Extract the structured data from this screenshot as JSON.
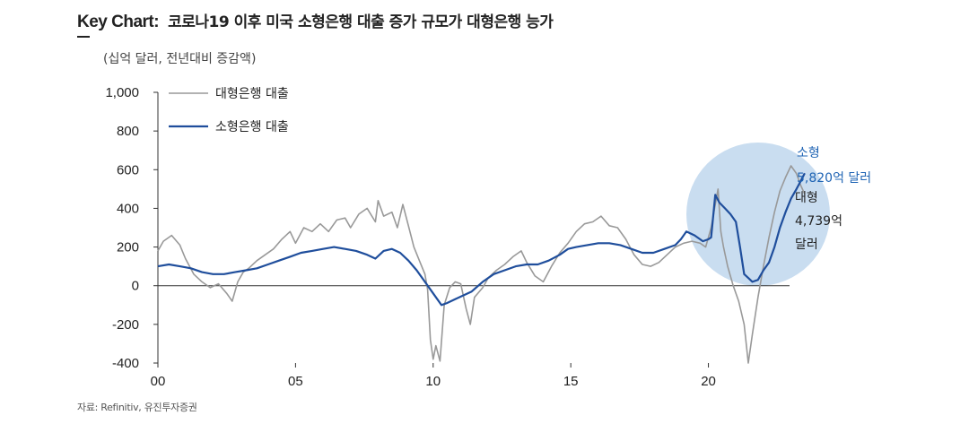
{
  "header": {
    "key_label": "Key Chart:",
    "title": "코로나19 이후 미국 소형은행 대출 증가 규모가 대형은행 능가",
    "unit": "(십억 달러, 전년대비 증감액)"
  },
  "source": "자료: Refinitiv, 유진투자증권",
  "colors": {
    "small_bank": "#1f4e9c",
    "large_bank": "#999999",
    "highlight_circle": "#c9ddf0",
    "annotation_blue": "#1f64b4"
  },
  "annotations": {
    "small": {
      "line1": "소형",
      "line2": "5,820억 달러"
    },
    "large": {
      "line1": "대형",
      "line2": "4,739억",
      "line3": "달러"
    }
  },
  "chart_data": {
    "type": "line",
    "xlabel": "",
    "ylabel": "",
    "xlim": [
      2000,
      2023.6
    ],
    "ylim": [
      -400,
      1000
    ],
    "y_ticks": [
      1000,
      800,
      600,
      400,
      200,
      0,
      -200,
      -400
    ],
    "y_tick_labels": [
      "1,000",
      "800",
      "600",
      "400",
      "200",
      "0",
      "-200",
      "-400"
    ],
    "x_ticks": [
      2000,
      2005,
      2010,
      2015,
      2020
    ],
    "x_tick_labels": [
      "00",
      "05",
      "10",
      "15",
      "20"
    ],
    "legend_position": "top-left",
    "series": [
      {
        "name": "대형은행 대출",
        "color": "#999999",
        "points": [
          [
            2000.0,
            180
          ],
          [
            2000.2,
            230
          ],
          [
            2000.5,
            260
          ],
          [
            2000.8,
            210
          ],
          [
            2001.0,
            140
          ],
          [
            2001.3,
            60
          ],
          [
            2001.6,
            20
          ],
          [
            2001.9,
            -10
          ],
          [
            2002.2,
            10
          ],
          [
            2002.5,
            -40
          ],
          [
            2002.7,
            -80
          ],
          [
            2002.9,
            20
          ],
          [
            2003.1,
            70
          ],
          [
            2003.3,
            90
          ],
          [
            2003.6,
            130
          ],
          [
            2003.9,
            160
          ],
          [
            2004.2,
            190
          ],
          [
            2004.5,
            240
          ],
          [
            2004.8,
            280
          ],
          [
            2005.0,
            220
          ],
          [
            2005.3,
            300
          ],
          [
            2005.6,
            280
          ],
          [
            2005.9,
            320
          ],
          [
            2006.2,
            280
          ],
          [
            2006.5,
            340
          ],
          [
            2006.8,
            350
          ],
          [
            2007.0,
            300
          ],
          [
            2007.3,
            370
          ],
          [
            2007.6,
            400
          ],
          [
            2007.9,
            330
          ],
          [
            2008.0,
            440
          ],
          [
            2008.2,
            360
          ],
          [
            2008.5,
            380
          ],
          [
            2008.7,
            300
          ],
          [
            2008.9,
            420
          ],
          [
            2009.1,
            310
          ],
          [
            2009.3,
            200
          ],
          [
            2009.5,
            130
          ],
          [
            2009.7,
            60
          ],
          [
            2009.8,
            -20
          ],
          [
            2009.9,
            -280
          ],
          [
            2010.0,
            -380
          ],
          [
            2010.1,
            -310
          ],
          [
            2010.25,
            -390
          ],
          [
            2010.4,
            -100
          ],
          [
            2010.6,
            -10
          ],
          [
            2010.8,
            20
          ],
          [
            2011.0,
            10
          ],
          [
            2011.2,
            -120
          ],
          [
            2011.35,
            -200
          ],
          [
            2011.5,
            -60
          ],
          [
            2011.8,
            -10
          ],
          [
            2012.0,
            40
          ],
          [
            2012.3,
            80
          ],
          [
            2012.6,
            110
          ],
          [
            2012.9,
            150
          ],
          [
            2013.2,
            180
          ],
          [
            2013.4,
            120
          ],
          [
            2013.7,
            50
          ],
          [
            2014.0,
            20
          ],
          [
            2014.3,
            100
          ],
          [
            2014.6,
            170
          ],
          [
            2014.9,
            220
          ],
          [
            2015.2,
            280
          ],
          [
            2015.5,
            320
          ],
          [
            2015.8,
            330
          ],
          [
            2016.1,
            360
          ],
          [
            2016.4,
            310
          ],
          [
            2016.7,
            300
          ],
          [
            2017.0,
            240
          ],
          [
            2017.3,
            160
          ],
          [
            2017.6,
            110
          ],
          [
            2017.9,
            100
          ],
          [
            2018.2,
            120
          ],
          [
            2018.5,
            160
          ],
          [
            2018.8,
            200
          ],
          [
            2019.1,
            220
          ],
          [
            2019.4,
            230
          ],
          [
            2019.7,
            220
          ],
          [
            2019.9,
            200
          ],
          [
            2020.1,
            300
          ],
          [
            2020.2,
            380
          ],
          [
            2020.35,
            500
          ],
          [
            2020.45,
            280
          ],
          [
            2020.55,
            200
          ],
          [
            2020.7,
            100
          ],
          [
            2020.9,
            0
          ],
          [
            2021.1,
            -80
          ],
          [
            2021.3,
            -200
          ],
          [
            2021.45,
            -400
          ],
          [
            2021.6,
            -250
          ],
          [
            2021.8,
            -60
          ],
          [
            2022.0,
            100
          ],
          [
            2022.2,
            250
          ],
          [
            2022.4,
            380
          ],
          [
            2022.6,
            490
          ],
          [
            2022.8,
            560
          ],
          [
            2023.0,
            620
          ],
          [
            2023.2,
            580
          ],
          [
            2023.35,
            520
          ],
          [
            2023.5,
            474
          ]
        ]
      },
      {
        "name": "소형은행 대출",
        "color": "#1f4e9c",
        "points": [
          [
            2000.0,
            100
          ],
          [
            2000.4,
            110
          ],
          [
            2000.8,
            100
          ],
          [
            2001.2,
            90
          ],
          [
            2001.6,
            70
          ],
          [
            2002.0,
            60
          ],
          [
            2002.4,
            60
          ],
          [
            2002.8,
            70
          ],
          [
            2003.2,
            80
          ],
          [
            2003.6,
            90
          ],
          [
            2004.0,
            110
          ],
          [
            2004.4,
            130
          ],
          [
            2004.8,
            150
          ],
          [
            2005.2,
            170
          ],
          [
            2005.6,
            180
          ],
          [
            2006.0,
            190
          ],
          [
            2006.4,
            200
          ],
          [
            2006.8,
            190
          ],
          [
            2007.2,
            180
          ],
          [
            2007.6,
            160
          ],
          [
            2007.9,
            140
          ],
          [
            2008.2,
            180
          ],
          [
            2008.5,
            190
          ],
          [
            2008.8,
            170
          ],
          [
            2009.1,
            130
          ],
          [
            2009.4,
            80
          ],
          [
            2009.7,
            20
          ],
          [
            2010.0,
            -40
          ],
          [
            2010.3,
            -100
          ],
          [
            2010.5,
            -90
          ],
          [
            2010.8,
            -70
          ],
          [
            2011.1,
            -50
          ],
          [
            2011.4,
            -30
          ],
          [
            2011.8,
            20
          ],
          [
            2012.2,
            60
          ],
          [
            2012.6,
            80
          ],
          [
            2013.0,
            100
          ],
          [
            2013.4,
            110
          ],
          [
            2013.8,
            110
          ],
          [
            2014.2,
            130
          ],
          [
            2014.6,
            160
          ],
          [
            2014.9,
            190
          ],
          [
            2015.2,
            200
          ],
          [
            2015.6,
            210
          ],
          [
            2016.0,
            220
          ],
          [
            2016.4,
            220
          ],
          [
            2016.8,
            210
          ],
          [
            2017.2,
            190
          ],
          [
            2017.6,
            170
          ],
          [
            2018.0,
            170
          ],
          [
            2018.4,
            190
          ],
          [
            2018.8,
            210
          ],
          [
            2019.0,
            240
          ],
          [
            2019.2,
            280
          ],
          [
            2019.5,
            260
          ],
          [
            2019.8,
            230
          ],
          [
            2020.0,
            240
          ],
          [
            2020.1,
            250
          ],
          [
            2020.25,
            470
          ],
          [
            2020.4,
            430
          ],
          [
            2020.6,
            400
          ],
          [
            2020.8,
            370
          ],
          [
            2021.0,
            330
          ],
          [
            2021.15,
            200
          ],
          [
            2021.3,
            60
          ],
          [
            2021.45,
            40
          ],
          [
            2021.6,
            20
          ],
          [
            2021.8,
            30
          ],
          [
            2022.0,
            80
          ],
          [
            2022.2,
            120
          ],
          [
            2022.4,
            200
          ],
          [
            2022.6,
            300
          ],
          [
            2022.8,
            380
          ],
          [
            2023.0,
            450
          ],
          [
            2023.2,
            500
          ],
          [
            2023.35,
            540
          ],
          [
            2023.5,
            582
          ]
        ]
      }
    ]
  }
}
